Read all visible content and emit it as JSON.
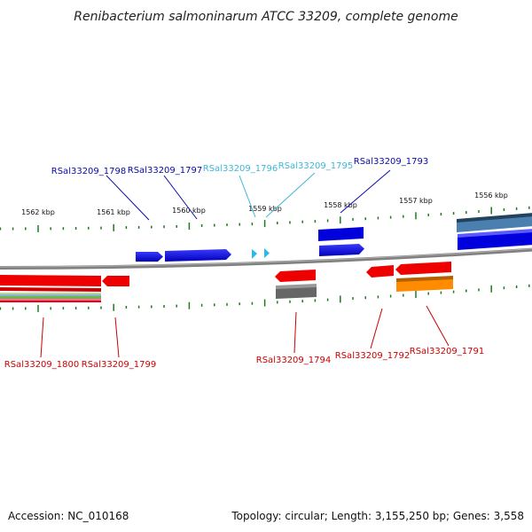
{
  "title": "Renibacterium salmoninarum ATCC 33209, complete genome",
  "footer": {
    "accession": "Accession: NC_010168",
    "stats": "Topology: circular; Length: 3,155,250 bp; Genes: 3,558"
  },
  "colors": {
    "backbone": "#7f7f7f",
    "tick": "#1f7a1f",
    "label_blue": "#0a0aa8",
    "label_cyan": "#3fb6d8",
    "label_red": "#cc0000"
  },
  "scale": {
    "unit": "kbp",
    "major_ticks": [
      {
        "kbp": 1562,
        "label": "1562 kbp"
      },
      {
        "kbp": 1561,
        "label": "1561 kbp"
      },
      {
        "kbp": 1560,
        "label": "1560 kbp"
      },
      {
        "kbp": 1559,
        "label": "1559 kbp"
      },
      {
        "kbp": 1558,
        "label": "1558 kbp"
      },
      {
        "kbp": 1557,
        "label": "1557 kbp"
      },
      {
        "kbp": 1556,
        "label": "1556 kbp"
      }
    ]
  },
  "genes": [
    {
      "id": "RSal33209_1798",
      "strand": "forward",
      "color": "#0000dd",
      "label_color": "#0a0aa8"
    },
    {
      "id": "RSal33209_1797",
      "strand": "forward",
      "color": "#0000dd",
      "label_color": "#0a0aa8"
    },
    {
      "id": "RSal33209_1796",
      "strand": "forward",
      "color": "#29b8e8",
      "label_color": "#3fb6d8"
    },
    {
      "id": "RSal33209_1795",
      "strand": "forward",
      "color": "#29b8e8",
      "label_color": "#3fb6d8"
    },
    {
      "id": "RSal33209_1793",
      "strand": "forward",
      "color": "#0000dd",
      "label_color": "#0a0aa8"
    },
    {
      "id": "RSal33209_1800",
      "strand": "reverse",
      "color": "#ee0000",
      "label_color": "#cc0000"
    },
    {
      "id": "RSal33209_1799",
      "strand": "reverse",
      "color": "#ee0000",
      "label_color": "#cc0000"
    },
    {
      "id": "RSal33209_1794",
      "strand": "reverse",
      "color": "#ee0000",
      "label_color": "#cc0000"
    },
    {
      "id": "RSal33209_1792",
      "strand": "reverse",
      "color": "#ee0000",
      "label_color": "#cc0000"
    },
    {
      "id": "RSal33209_1791",
      "strand": "reverse",
      "color": "#ee0000",
      "label_color": "#cc0000"
    }
  ],
  "features": [
    {
      "name": "outer-blue-bar",
      "color": "#0000dd"
    },
    {
      "name": "steelblue-bar",
      "color": "#4a7fb0"
    },
    {
      "name": "gray-bar",
      "color": "#666666"
    },
    {
      "name": "orange-bar",
      "color": "#ff8c00"
    },
    {
      "name": "multicolor-band",
      "colors": [
        "#b8d8a0",
        "#8fb0d0",
        "#66bb44",
        "#ff66aa",
        "#ee0000"
      ]
    }
  ]
}
